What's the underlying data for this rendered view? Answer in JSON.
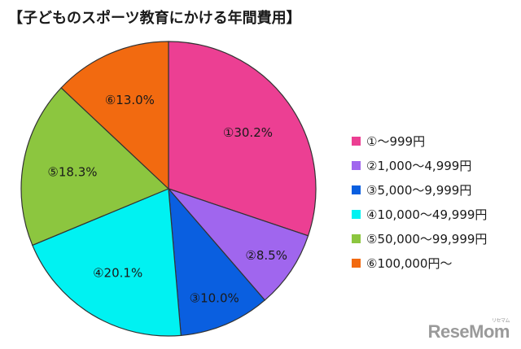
{
  "chart_data": {
    "type": "pie",
    "title": "【子どものスポーツ教育にかける年間費用】",
    "series": [
      {
        "name": "①～999円",
        "label": "①30.2%",
        "value": 30.2,
        "color": "#ec3f93"
      },
      {
        "name": "②1,000～4,999円",
        "label": "②8.5%",
        "value": 8.5,
        "color": "#a066ee"
      },
      {
        "name": "③5,000～9,999円",
        "label": "③10.0%",
        "value": 10.0,
        "color": "#0a5fe0"
      },
      {
        "name": "④10,000～49,999円",
        "label": "④20.1%",
        "value": 20.1,
        "color": "#00f2f2"
      },
      {
        "name": "⑤50,000～99,999円",
        "label": "⑤18.3%",
        "value": 18.3,
        "color": "#8cc63f"
      },
      {
        "name": "⑥100,000円～",
        "label": "⑥13.0%",
        "value": 13.0,
        "color": "#f26a10"
      }
    ],
    "legend_position": "right",
    "start": "top",
    "direction": "clockwise"
  },
  "watermark": {
    "text": "ReseMom",
    "sub": "リセマム"
  }
}
